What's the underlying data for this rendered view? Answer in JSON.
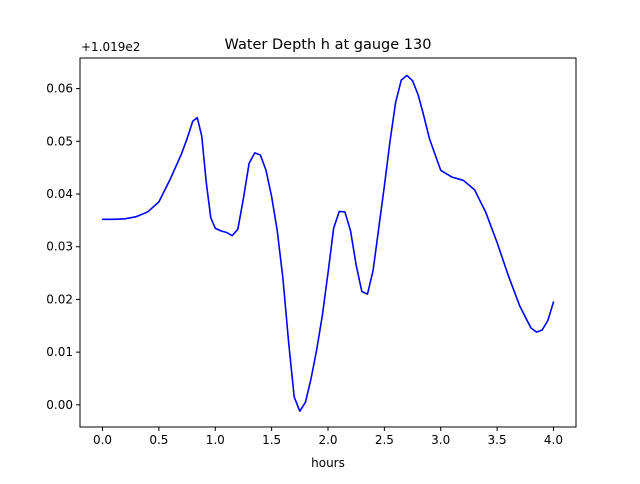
{
  "chart_data": {
    "type": "line",
    "title": "Water Depth h at gauge 130",
    "xlabel": "hours",
    "ylabel": "",
    "offset_label": "+1.019e2",
    "xlim": [
      -0.2,
      4.2
    ],
    "ylim": [
      -0.0042,
      0.0658
    ],
    "xticks": [
      0.0,
      0.5,
      1.0,
      1.5,
      2.0,
      2.5,
      3.0,
      3.5,
      4.0
    ],
    "xtick_labels": [
      "0.0",
      "0.5",
      "1.0",
      "1.5",
      "2.0",
      "2.5",
      "3.0",
      "3.5",
      "4.0"
    ],
    "yticks": [
      0.0,
      0.01,
      0.02,
      0.03,
      0.04,
      0.05,
      0.06
    ],
    "ytick_labels": [
      "0.00",
      "0.01",
      "0.02",
      "0.03",
      "0.04",
      "0.05",
      "0.06"
    ],
    "grid": false,
    "line_color": "#0000ff",
    "series": [
      {
        "x": [
          0.0,
          0.1,
          0.2,
          0.3,
          0.4,
          0.5,
          0.6,
          0.7,
          0.75,
          0.8,
          0.84,
          0.88,
          0.92,
          0.96,
          1.0,
          1.05,
          1.1,
          1.15,
          1.2,
          1.25,
          1.3,
          1.35,
          1.4,
          1.45,
          1.5,
          1.55,
          1.6,
          1.65,
          1.7,
          1.75,
          1.8,
          1.85,
          1.9,
          1.95,
          2.0,
          2.05,
          2.1,
          2.15,
          2.2,
          2.25,
          2.3,
          2.35,
          2.4,
          2.45,
          2.5,
          2.55,
          2.6,
          2.65,
          2.7,
          2.75,
          2.8,
          2.85,
          2.9,
          2.95,
          3.0,
          3.1,
          3.2,
          3.3,
          3.4,
          3.5,
          3.6,
          3.7,
          3.8,
          3.85,
          3.9,
          3.95,
          4.0
        ],
        "y": [
          0.0352,
          0.0352,
          0.0353,
          0.0357,
          0.0366,
          0.0385,
          0.0428,
          0.0476,
          0.0505,
          0.0538,
          0.0545,
          0.051,
          0.0422,
          0.0355,
          0.0335,
          0.033,
          0.0327,
          0.0321,
          0.0333,
          0.0392,
          0.0458,
          0.0478,
          0.0474,
          0.0445,
          0.0395,
          0.033,
          0.024,
          0.012,
          0.0015,
          -0.0012,
          0.0005,
          0.005,
          0.0105,
          0.017,
          0.025,
          0.0335,
          0.0367,
          0.0366,
          0.033,
          0.0265,
          0.0215,
          0.021,
          0.0255,
          0.0335,
          0.0415,
          0.05,
          0.0574,
          0.0616,
          0.0625,
          0.0615,
          0.0588,
          0.0548,
          0.0505,
          0.0475,
          0.0445,
          0.0432,
          0.0426,
          0.0408,
          0.0365,
          0.0308,
          0.0245,
          0.0188,
          0.0146,
          0.0138,
          0.0142,
          0.016,
          0.0195
        ]
      }
    ]
  }
}
